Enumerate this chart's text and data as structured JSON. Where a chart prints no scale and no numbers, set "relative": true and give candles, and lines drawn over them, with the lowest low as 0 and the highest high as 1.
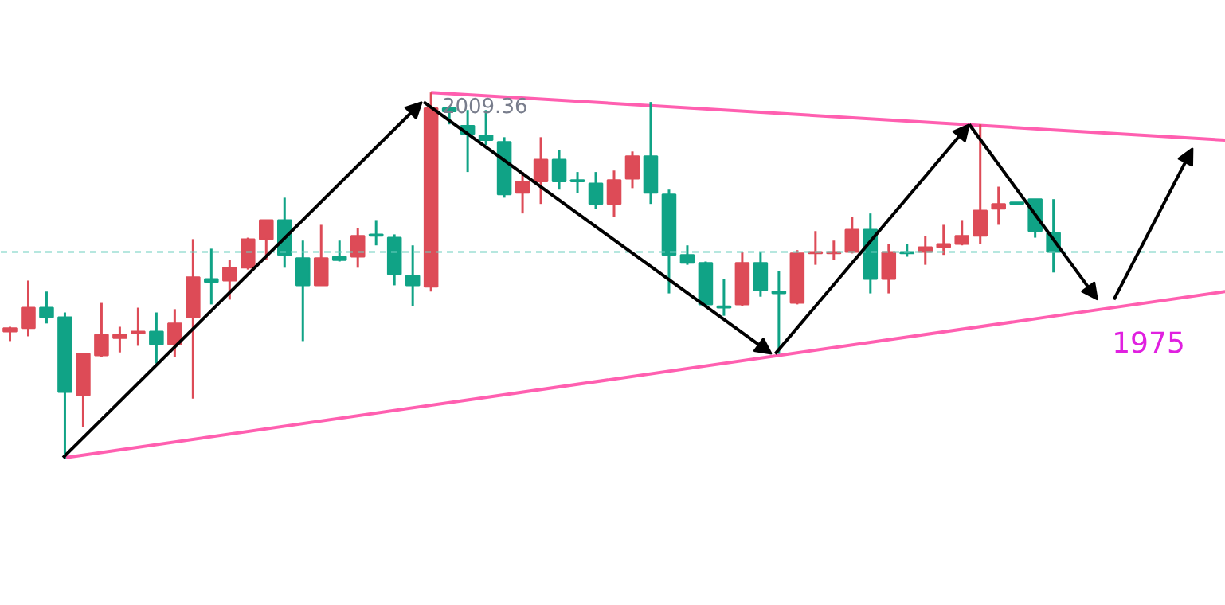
{
  "chart_data": {
    "type": "candlestick",
    "relative": true,
    "tick_labels": false,
    "grid": false,
    "categories": [
      null,
      null,
      null,
      null,
      null,
      null,
      null,
      null,
      null,
      null,
      null,
      null,
      null,
      null,
      null,
      null,
      null,
      null,
      null,
      null,
      null,
      null,
      null,
      null,
      null,
      null,
      null,
      null,
      null,
      null,
      null,
      null,
      null,
      null,
      null,
      null,
      null,
      null,
      null,
      null,
      null,
      null,
      null,
      null,
      null,
      null,
      null,
      null,
      null,
      null,
      null,
      null,
      null,
      null,
      null,
      null,
      null,
      null
    ],
    "ohlc": [
      [
        0.348,
        0.361,
        0.322,
        0.357
      ],
      [
        0.357,
        0.487,
        0.335,
        0.413
      ],
      [
        0.413,
        0.457,
        0.37,
        0.387
      ],
      [
        0.387,
        0.4,
        0,
        0.183
      ],
      [
        0.174,
        0.287,
        0.087,
        0.287
      ],
      [
        0.283,
        0.426,
        0.278,
        0.339
      ],
      [
        0.33,
        0.361,
        0.291,
        0.339
      ],
      [
        0.343,
        0.413,
        0.309,
        0.348
      ],
      [
        0.348,
        0.4,
        0.261,
        0.313
      ],
      [
        0.313,
        0.409,
        0.278,
        0.37
      ],
      [
        0.387,
        0.6,
        0.165,
        0.496
      ],
      [
        0.491,
        0.574,
        0.422,
        0.483
      ],
      [
        0.487,
        0.543,
        0.435,
        0.522
      ],
      [
        0.522,
        0.604,
        0.517,
        0.6
      ],
      [
        0.6,
        0.652,
        0.543,
        0.652
      ],
      [
        0.652,
        0.713,
        0.522,
        0.557
      ],
      [
        0.548,
        0.596,
        0.322,
        0.474
      ],
      [
        0.474,
        0.639,
        0.474,
        0.548
      ],
      [
        0.552,
        0.596,
        0.539,
        0.543
      ],
      [
        0.552,
        0.63,
        0.522,
        0.609
      ],
      [
        0.613,
        0.652,
        0.583,
        0.609
      ],
      [
        0.604,
        0.613,
        0.474,
        0.504
      ],
      [
        0.5,
        0.583,
        0.417,
        0.474
      ],
      [
        0.47,
        1.0,
        0.457,
        0.957
      ],
      [
        0.957,
        0.957,
        0.913,
        0.948
      ],
      [
        0.909,
        0.952,
        0.783,
        0.887
      ],
      [
        0.883,
        0.952,
        0.857,
        0.87
      ],
      [
        0.865,
        0.878,
        0.713,
        0.722
      ],
      [
        0.726,
        0.783,
        0.67,
        0.757
      ],
      [
        0.757,
        0.878,
        0.696,
        0.817
      ],
      [
        0.817,
        0.843,
        0.735,
        0.757
      ],
      [
        0.761,
        0.783,
        0.726,
        0.757
      ],
      [
        0.752,
        0.783,
        0.683,
        0.696
      ],
      [
        0.696,
        0.787,
        0.661,
        0.761
      ],
      [
        0.765,
        0.839,
        0.739,
        0.826
      ],
      [
        0.826,
        0.974,
        0.696,
        0.726
      ],
      [
        0.722,
        0.735,
        0.452,
        0.557
      ],
      [
        0.557,
        0.583,
        0.53,
        0.535
      ],
      [
        0.535,
        0.539,
        0.417,
        0.422
      ],
      [
        0.417,
        0.491,
        0.391,
        0.413
      ],
      [
        0.422,
        0.565,
        0.417,
        0.535
      ],
      [
        0.535,
        0.565,
        0.443,
        0.461
      ],
      [
        0.457,
        0.513,
        0.287,
        0.452
      ],
      [
        0.426,
        0.57,
        0.422,
        0.561
      ],
      [
        0.561,
        0.622,
        0.53,
        0.565
      ],
      [
        0.561,
        0.596,
        0.543,
        0.565
      ],
      [
        0.565,
        0.661,
        0.561,
        0.626
      ],
      [
        0.626,
        0.67,
        0.452,
        0.491
      ],
      [
        0.491,
        0.587,
        0.452,
        0.565
      ],
      [
        0.565,
        0.587,
        0.552,
        0.561
      ],
      [
        0.565,
        0.609,
        0.53,
        0.578
      ],
      [
        0.578,
        0.639,
        0.557,
        0.587
      ],
      [
        0.587,
        0.652,
        0.583,
        0.609
      ],
      [
        0.609,
        0.913,
        0.587,
        0.678
      ],
      [
        0.683,
        0.743,
        0.639,
        0.696
      ],
      [
        0.7,
        0.7,
        0.696,
        0.696
      ],
      [
        0.709,
        0.709,
        0.604,
        0.622
      ],
      [
        0.617,
        0.709,
        0.509,
        0.565
      ]
    ],
    "colors": [
      "#dd4b57",
      "#dd4b57",
      "#10a386",
      "#10a386",
      "#dd4b57",
      "#dd4b57",
      "#dd4b57",
      "#dd4b57",
      "#10a386",
      "#dd4b57",
      "#dd4b57",
      "#10a386",
      "#dd4b57",
      "#dd4b57",
      "#dd4b57",
      "#10a386",
      "#10a386",
      "#dd4b57",
      "#10a386",
      "#dd4b57",
      "#10a386",
      "#10a386",
      "#10a386",
      "#dd4b57",
      "#10a386",
      "#10a386",
      "#10a386",
      "#10a386",
      "#dd4b57",
      "#dd4b57",
      "#10a386",
      "#10a386",
      "#10a386",
      "#dd4b57",
      "#dd4b57",
      "#10a386",
      "#10a386",
      "#10a386",
      "#10a386",
      "#10a386",
      "#dd4b57",
      "#10a386",
      "#10a386",
      "#dd4b57",
      "#dd4b57",
      "#dd4b57",
      "#dd4b57",
      "#10a386",
      "#dd4b57",
      "#10a386",
      "#dd4b57",
      "#dd4b57",
      "#dd4b57",
      "#dd4b57",
      "#dd4b57",
      "#10a386",
      "#10a386",
      "#10a386"
    ],
    "series": [
      {
        "type": "line",
        "color": "#ff5fb0",
        "values": [
          null,
          null,
          null,
          null,
          null,
          null,
          null,
          null,
          null,
          null,
          null,
          null,
          null,
          null,
          null,
          null,
          null,
          null,
          null,
          null,
          null,
          null,
          null,
          1.0,
          null,
          null,
          null,
          null,
          null,
          null,
          null,
          null,
          null,
          null,
          null,
          null,
          null,
          null,
          null,
          null,
          null,
          null,
          null,
          null,
          null,
          null,
          null,
          null,
          null,
          null,
          null,
          null,
          null,
          null,
          null,
          null,
          null,
          0.898
        ]
      },
      {
        "type": "line",
        "color": "#ff5fb0",
        "values": [
          null,
          null,
          null,
          0.004,
          null,
          null,
          null,
          null,
          null,
          null,
          null,
          null,
          null,
          null,
          null,
          null,
          null,
          null,
          null,
          null,
          null,
          null,
          null,
          null,
          null,
          null,
          null,
          null,
          null,
          null,
          null,
          null,
          null,
          null,
          null,
          null,
          null,
          null,
          null,
          null,
          null,
          null,
          null,
          null,
          null,
          null,
          null,
          null,
          null,
          null,
          null,
          null,
          null,
          null,
          null,
          null,
          null,
          0.39
        ]
      }
    ],
    "ref_lines": [
      {
        "axis": "y",
        "value": 0.565,
        "color": "#6fcfbf",
        "line_style": "dashed"
      }
    ],
    "annotations": [
      "2009.36",
      "1975"
    ]
  }
}
